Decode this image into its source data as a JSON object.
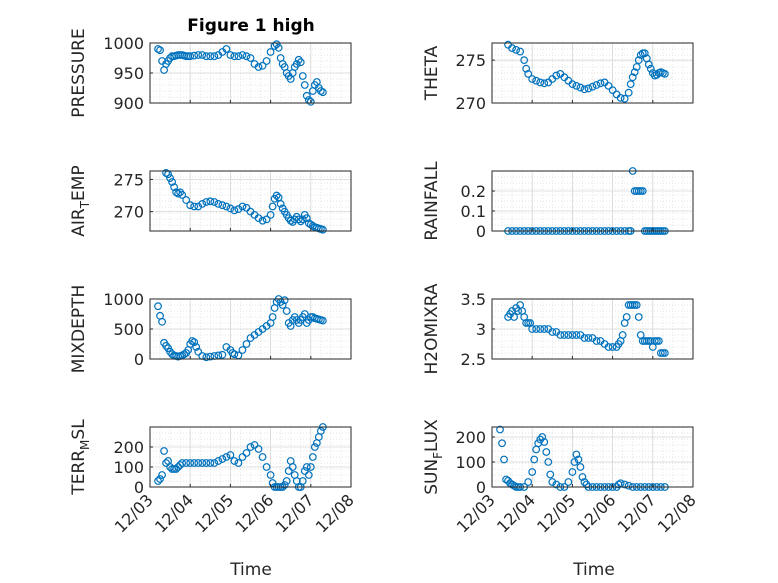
{
  "figure": {
    "title": "Figure 1 high",
    "xlabel": "Time"
  },
  "chart_data": [
    {
      "type": "scatter",
      "ylabel": "PRESSURE",
      "yticks": [
        900,
        950,
        1000
      ],
      "ylim": [
        900,
        1000
      ],
      "x_range": [
        "12/03",
        "12/08"
      ],
      "xticks": [
        "12/03",
        "12/04",
        "12/05",
        "12/06",
        "12/07",
        "12/08"
      ],
      "series": [
        {
          "x": [
            3.2,
            3.25,
            3.3,
            3.35,
            3.4,
            3.45,
            3.5,
            3.55,
            3.6,
            3.65,
            3.7,
            3.75,
            3.8,
            3.85,
            3.9,
            3.95,
            4.0,
            4.1,
            4.2,
            4.3,
            4.4,
            4.5,
            4.6,
            4.7,
            4.8,
            4.9,
            5.0,
            5.1,
            5.2,
            5.3,
            5.4,
            5.5,
            5.6,
            5.7,
            5.8,
            5.9,
            6.0,
            6.1,
            6.15,
            6.2,
            6.25,
            6.3,
            6.35,
            6.4,
            6.45,
            6.5,
            6.55,
            6.6,
            6.65,
            6.7,
            6.75,
            6.8,
            6.85,
            6.9,
            6.95,
            7.0,
            7.05,
            7.1,
            7.15,
            7.2,
            7.25,
            7.3
          ],
          "y": [
            990,
            988,
            970,
            955,
            965,
            970,
            975,
            978,
            978,
            979,
            980,
            980,
            980,
            979,
            978,
            978,
            978,
            979,
            980,
            980,
            978,
            978,
            978,
            980,
            985,
            990,
            980,
            978,
            978,
            980,
            978,
            975,
            965,
            960,
            962,
            970,
            985,
            995,
            998,
            992,
            975,
            965,
            960,
            950,
            945,
            940,
            950,
            960,
            965,
            972,
            968,
            945,
            930,
            912,
            905,
            902,
            920,
            930,
            935,
            925,
            920,
            918
          ]
        }
      ]
    },
    {
      "type": "scatter",
      "ylabel": "THETA",
      "yticks": [
        270,
        275
      ],
      "ylim": [
        270,
        277
      ],
      "x_range": [
        "12/03",
        "12/08"
      ],
      "series": [
        {
          "x": [
            3.4,
            3.5,
            3.6,
            3.7,
            3.8,
            3.85,
            3.9,
            4.0,
            4.1,
            4.2,
            4.3,
            4.4,
            4.5,
            4.6,
            4.7,
            4.8,
            4.9,
            5.0,
            5.1,
            5.2,
            5.3,
            5.4,
            5.5,
            5.6,
            5.7,
            5.8,
            5.9,
            6.0,
            6.1,
            6.2,
            6.3,
            6.4,
            6.45,
            6.5,
            6.55,
            6.6,
            6.65,
            6.7,
            6.75,
            6.8,
            6.85,
            6.9,
            6.95,
            7.0,
            7.05,
            7.1,
            7.15,
            7.2,
            7.25,
            7.3
          ],
          "y": [
            276.8,
            276.4,
            276.2,
            276.0,
            275.0,
            274.0,
            273.4,
            272.8,
            272.6,
            272.4,
            272.3,
            272.4,
            272.8,
            273.2,
            273.4,
            273.0,
            272.6,
            272.2,
            272.0,
            271.8,
            271.6,
            271.7,
            271.9,
            272.1,
            272.3,
            272.4,
            272.0,
            271.5,
            271.0,
            270.6,
            270.5,
            271.2,
            272.2,
            273.0,
            273.6,
            274.2,
            275.0,
            275.6,
            275.8,
            275.8,
            275.2,
            274.5,
            274.0,
            273.5,
            273.2,
            273.3,
            273.5,
            273.6,
            273.5,
            273.4
          ]
        }
      ]
    },
    {
      "type": "scatter",
      "ylabel": "AIR_TEMP",
      "yticks": [
        270,
        275
      ],
      "ylim": [
        267,
        276.3
      ],
      "x_range": [
        "12/03",
        "12/08"
      ],
      "series": [
        {
          "x": [
            3.4,
            3.45,
            3.5,
            3.55,
            3.6,
            3.65,
            3.7,
            3.75,
            3.8,
            3.9,
            4.0,
            4.1,
            4.2,
            4.3,
            4.4,
            4.5,
            4.6,
            4.7,
            4.8,
            4.9,
            5.0,
            5.1,
            5.2,
            5.3,
            5.4,
            5.5,
            5.6,
            5.7,
            5.8,
            5.9,
            6.0,
            6.05,
            6.1,
            6.15,
            6.2,
            6.25,
            6.3,
            6.35,
            6.4,
            6.45,
            6.5,
            6.55,
            6.6,
            6.65,
            6.7,
            6.75,
            6.8,
            6.85,
            6.9,
            6.95,
            7.0,
            7.05,
            7.1,
            7.15,
            7.2,
            7.25,
            7.3
          ],
          "y": [
            276.0,
            275.8,
            275.2,
            274.6,
            273.8,
            273.0,
            272.8,
            273.0,
            272.6,
            271.8,
            271.0,
            270.8,
            270.8,
            271.2,
            271.5,
            271.6,
            271.5,
            271.2,
            271.0,
            270.8,
            270.5,
            270.2,
            270.4,
            270.8,
            270.6,
            270.0,
            269.5,
            269.0,
            268.6,
            268.8,
            269.5,
            270.8,
            272.0,
            272.5,
            272.2,
            271.2,
            270.5,
            270.0,
            269.5,
            269.0,
            268.6,
            268.4,
            268.8,
            269.2,
            268.8,
            268.5,
            268.8,
            269.5,
            269.0,
            268.2,
            268.0,
            267.8,
            267.6,
            267.5,
            267.4,
            267.3,
            267.2
          ]
        }
      ]
    },
    {
      "type": "scatter",
      "ylabel": "RAINFALL",
      "yticks": [
        0,
        0.1,
        0.2
      ],
      "ylim": [
        0,
        0.3
      ],
      "x_range": [
        "12/03",
        "12/08"
      ],
      "series": [
        {
          "x": [
            3.4,
            3.5,
            3.6,
            3.7,
            3.8,
            3.9,
            4.0,
            4.1,
            4.2,
            4.3,
            4.4,
            4.5,
            4.6,
            4.7,
            4.8,
            4.9,
            5.0,
            5.1,
            5.2,
            5.3,
            5.4,
            5.5,
            5.6,
            5.7,
            5.8,
            5.9,
            6.0,
            6.1,
            6.2,
            6.3,
            6.4,
            6.45,
            6.5,
            6.55,
            6.6,
            6.65,
            6.7,
            6.75,
            6.8,
            6.85,
            6.9,
            6.95,
            7.0,
            7.05,
            7.1,
            7.15,
            7.2,
            7.25,
            7.3
          ],
          "y": [
            0,
            0,
            0,
            0,
            0,
            0,
            0,
            0,
            0,
            0,
            0,
            0,
            0,
            0,
            0,
            0,
            0,
            0,
            0,
            0,
            0,
            0,
            0,
            0,
            0,
            0,
            0,
            0,
            0,
            0,
            0,
            0,
            0.3,
            0.2,
            0.2,
            0.2,
            0.2,
            0.2,
            0,
            0,
            0,
            0,
            0,
            0,
            0,
            0,
            0,
            0,
            0
          ]
        }
      ]
    },
    {
      "type": "scatter",
      "ylabel": "MIXDEPTH",
      "yticks": [
        0,
        500,
        1000
      ],
      "ylim": [
        0,
        1000
      ],
      "x_range": [
        "12/03",
        "12/08"
      ],
      "series": [
        {
          "x": [
            3.2,
            3.25,
            3.3,
            3.35,
            3.4,
            3.45,
            3.5,
            3.55,
            3.6,
            3.65,
            3.7,
            3.75,
            3.8,
            3.85,
            3.9,
            3.95,
            4.0,
            4.05,
            4.1,
            4.15,
            4.2,
            4.3,
            4.4,
            4.5,
            4.6,
            4.7,
            4.8,
            4.9,
            5.0,
            5.05,
            5.1,
            5.2,
            5.3,
            5.4,
            5.5,
            5.6,
            5.7,
            5.8,
            5.9,
            6.0,
            6.05,
            6.1,
            6.15,
            6.2,
            6.25,
            6.3,
            6.35,
            6.4,
            6.45,
            6.5,
            6.55,
            6.6,
            6.65,
            6.7,
            6.75,
            6.8,
            6.85,
            6.9,
            6.95,
            7.0,
            7.05,
            7.1,
            7.15,
            7.2,
            7.25,
            7.3
          ],
          "y": [
            880,
            720,
            620,
            270,
            220,
            180,
            120,
            80,
            60,
            50,
            40,
            50,
            60,
            80,
            100,
            150,
            250,
            300,
            280,
            200,
            120,
            50,
            30,
            40,
            50,
            60,
            70,
            200,
            150,
            100,
            80,
            60,
            150,
            250,
            350,
            400,
            450,
            500,
            550,
            600,
            700,
            850,
            950,
            1000,
            950,
            900,
            980,
            800,
            600,
            550,
            650,
            700,
            650,
            600,
            650,
            700,
            750,
            600,
            650,
            700,
            700,
            680,
            670,
            660,
            650,
            640
          ]
        }
      ]
    },
    {
      "type": "scatter",
      "ylabel": "H2OMIXRA",
      "yticks": [
        2.5,
        3,
        3.5
      ],
      "ylim": [
        2.5,
        3.5
      ],
      "x_range": [
        "12/03",
        "12/08"
      ],
      "series": [
        {
          "x": [
            3.4,
            3.45,
            3.5,
            3.55,
            3.6,
            3.65,
            3.7,
            3.75,
            3.8,
            3.85,
            3.9,
            3.95,
            4.0,
            4.1,
            4.2,
            4.3,
            4.4,
            4.5,
            4.6,
            4.7,
            4.8,
            4.9,
            5.0,
            5.1,
            5.2,
            5.3,
            5.4,
            5.5,
            5.6,
            5.7,
            5.8,
            5.9,
            6.0,
            6.1,
            6.15,
            6.2,
            6.25,
            6.3,
            6.35,
            6.4,
            6.45,
            6.5,
            6.55,
            6.6,
            6.65,
            6.7,
            6.75,
            6.8,
            6.85,
            6.9,
            6.95,
            7.0,
            7.05,
            7.1,
            7.15,
            7.2,
            7.25,
            7.3
          ],
          "y": [
            3.2,
            3.25,
            3.3,
            3.2,
            3.35,
            3.3,
            3.4,
            3.3,
            3.2,
            3.1,
            3.1,
            3.1,
            3.0,
            3.0,
            3.0,
            3.0,
            3.0,
            2.95,
            2.95,
            2.9,
            2.9,
            2.9,
            2.9,
            2.9,
            2.9,
            2.85,
            2.85,
            2.85,
            2.8,
            2.8,
            2.75,
            2.7,
            2.7,
            2.7,
            2.75,
            2.8,
            2.9,
            3.1,
            3.2,
            3.4,
            3.4,
            3.4,
            3.4,
            3.4,
            3.2,
            2.9,
            2.8,
            2.8,
            2.8,
            2.8,
            2.8,
            2.7,
            2.8,
            2.8,
            2.8,
            2.6,
            2.6,
            2.6
          ]
        }
      ]
    },
    {
      "type": "scatter",
      "ylabel": "TERR_MSL",
      "yticks": [
        0,
        100,
        200
      ],
      "ylim": [
        0,
        300
      ],
      "x_range": [
        "12/03",
        "12/08"
      ],
      "series": [
        {
          "x": [
            3.2,
            3.25,
            3.3,
            3.35,
            3.4,
            3.45,
            3.5,
            3.55,
            3.6,
            3.65,
            3.7,
            3.75,
            3.8,
            3.9,
            4.0,
            4.1,
            4.2,
            4.3,
            4.4,
            4.5,
            4.6,
            4.7,
            4.8,
            4.9,
            5.0,
            5.1,
            5.2,
            5.3,
            5.4,
            5.5,
            5.6,
            5.7,
            5.8,
            5.9,
            6.0,
            6.05,
            6.1,
            6.15,
            6.2,
            6.25,
            6.3,
            6.35,
            6.4,
            6.45,
            6.5,
            6.55,
            6.6,
            6.65,
            6.7,
            6.75,
            6.8,
            6.85,
            6.9,
            6.95,
            7.0,
            7.05,
            7.1,
            7.15,
            7.2,
            7.25,
            7.3
          ],
          "y": [
            30,
            40,
            60,
            180,
            120,
            130,
            100,
            90,
            90,
            90,
            100,
            110,
            120,
            120,
            120,
            120,
            120,
            120,
            120,
            120,
            120,
            130,
            140,
            150,
            160,
            130,
            120,
            150,
            170,
            200,
            210,
            190,
            150,
            100,
            60,
            20,
            0,
            0,
            0,
            0,
            0,
            10,
            30,
            80,
            130,
            100,
            60,
            30,
            0,
            0,
            30,
            80,
            100,
            60,
            100,
            150,
            200,
            220,
            250,
            280,
            300
          ]
        }
      ]
    },
    {
      "type": "scatter",
      "ylabel": "SUN_FLUX",
      "yticks": [
        0,
        100,
        200
      ],
      "ylim": [
        0,
        240
      ],
      "x_range": [
        "12/03",
        "12/08"
      ],
      "series": [
        {
          "x": [
            3.2,
            3.25,
            3.3,
            3.35,
            3.4,
            3.45,
            3.5,
            3.55,
            3.6,
            3.65,
            3.7,
            3.8,
            3.9,
            4.0,
            4.05,
            4.1,
            4.15,
            4.2,
            4.25,
            4.3,
            4.35,
            4.4,
            4.45,
            4.5,
            4.6,
            4.7,
            4.8,
            4.9,
            5.0,
            5.05,
            5.1,
            5.15,
            5.2,
            5.25,
            5.3,
            5.35,
            5.4,
            5.5,
            5.6,
            5.7,
            5.8,
            5.9,
            6.0,
            6.1,
            6.15,
            6.2,
            6.3,
            6.4,
            6.5,
            6.6,
            6.7,
            6.8,
            6.9,
            7.0,
            7.1,
            7.2,
            7.3
          ],
          "y": [
            230,
            175,
            110,
            30,
            25,
            15,
            10,
            5,
            0,
            0,
            0,
            0,
            20,
            60,
            110,
            150,
            175,
            190,
            200,
            180,
            140,
            100,
            50,
            20,
            10,
            0,
            0,
            20,
            60,
            100,
            130,
            110,
            80,
            40,
            20,
            10,
            0,
            0,
            0,
            0,
            0,
            0,
            0,
            0,
            10,
            15,
            10,
            5,
            0,
            0,
            0,
            0,
            0,
            0,
            0,
            0,
            0
          ]
        }
      ]
    }
  ]
}
